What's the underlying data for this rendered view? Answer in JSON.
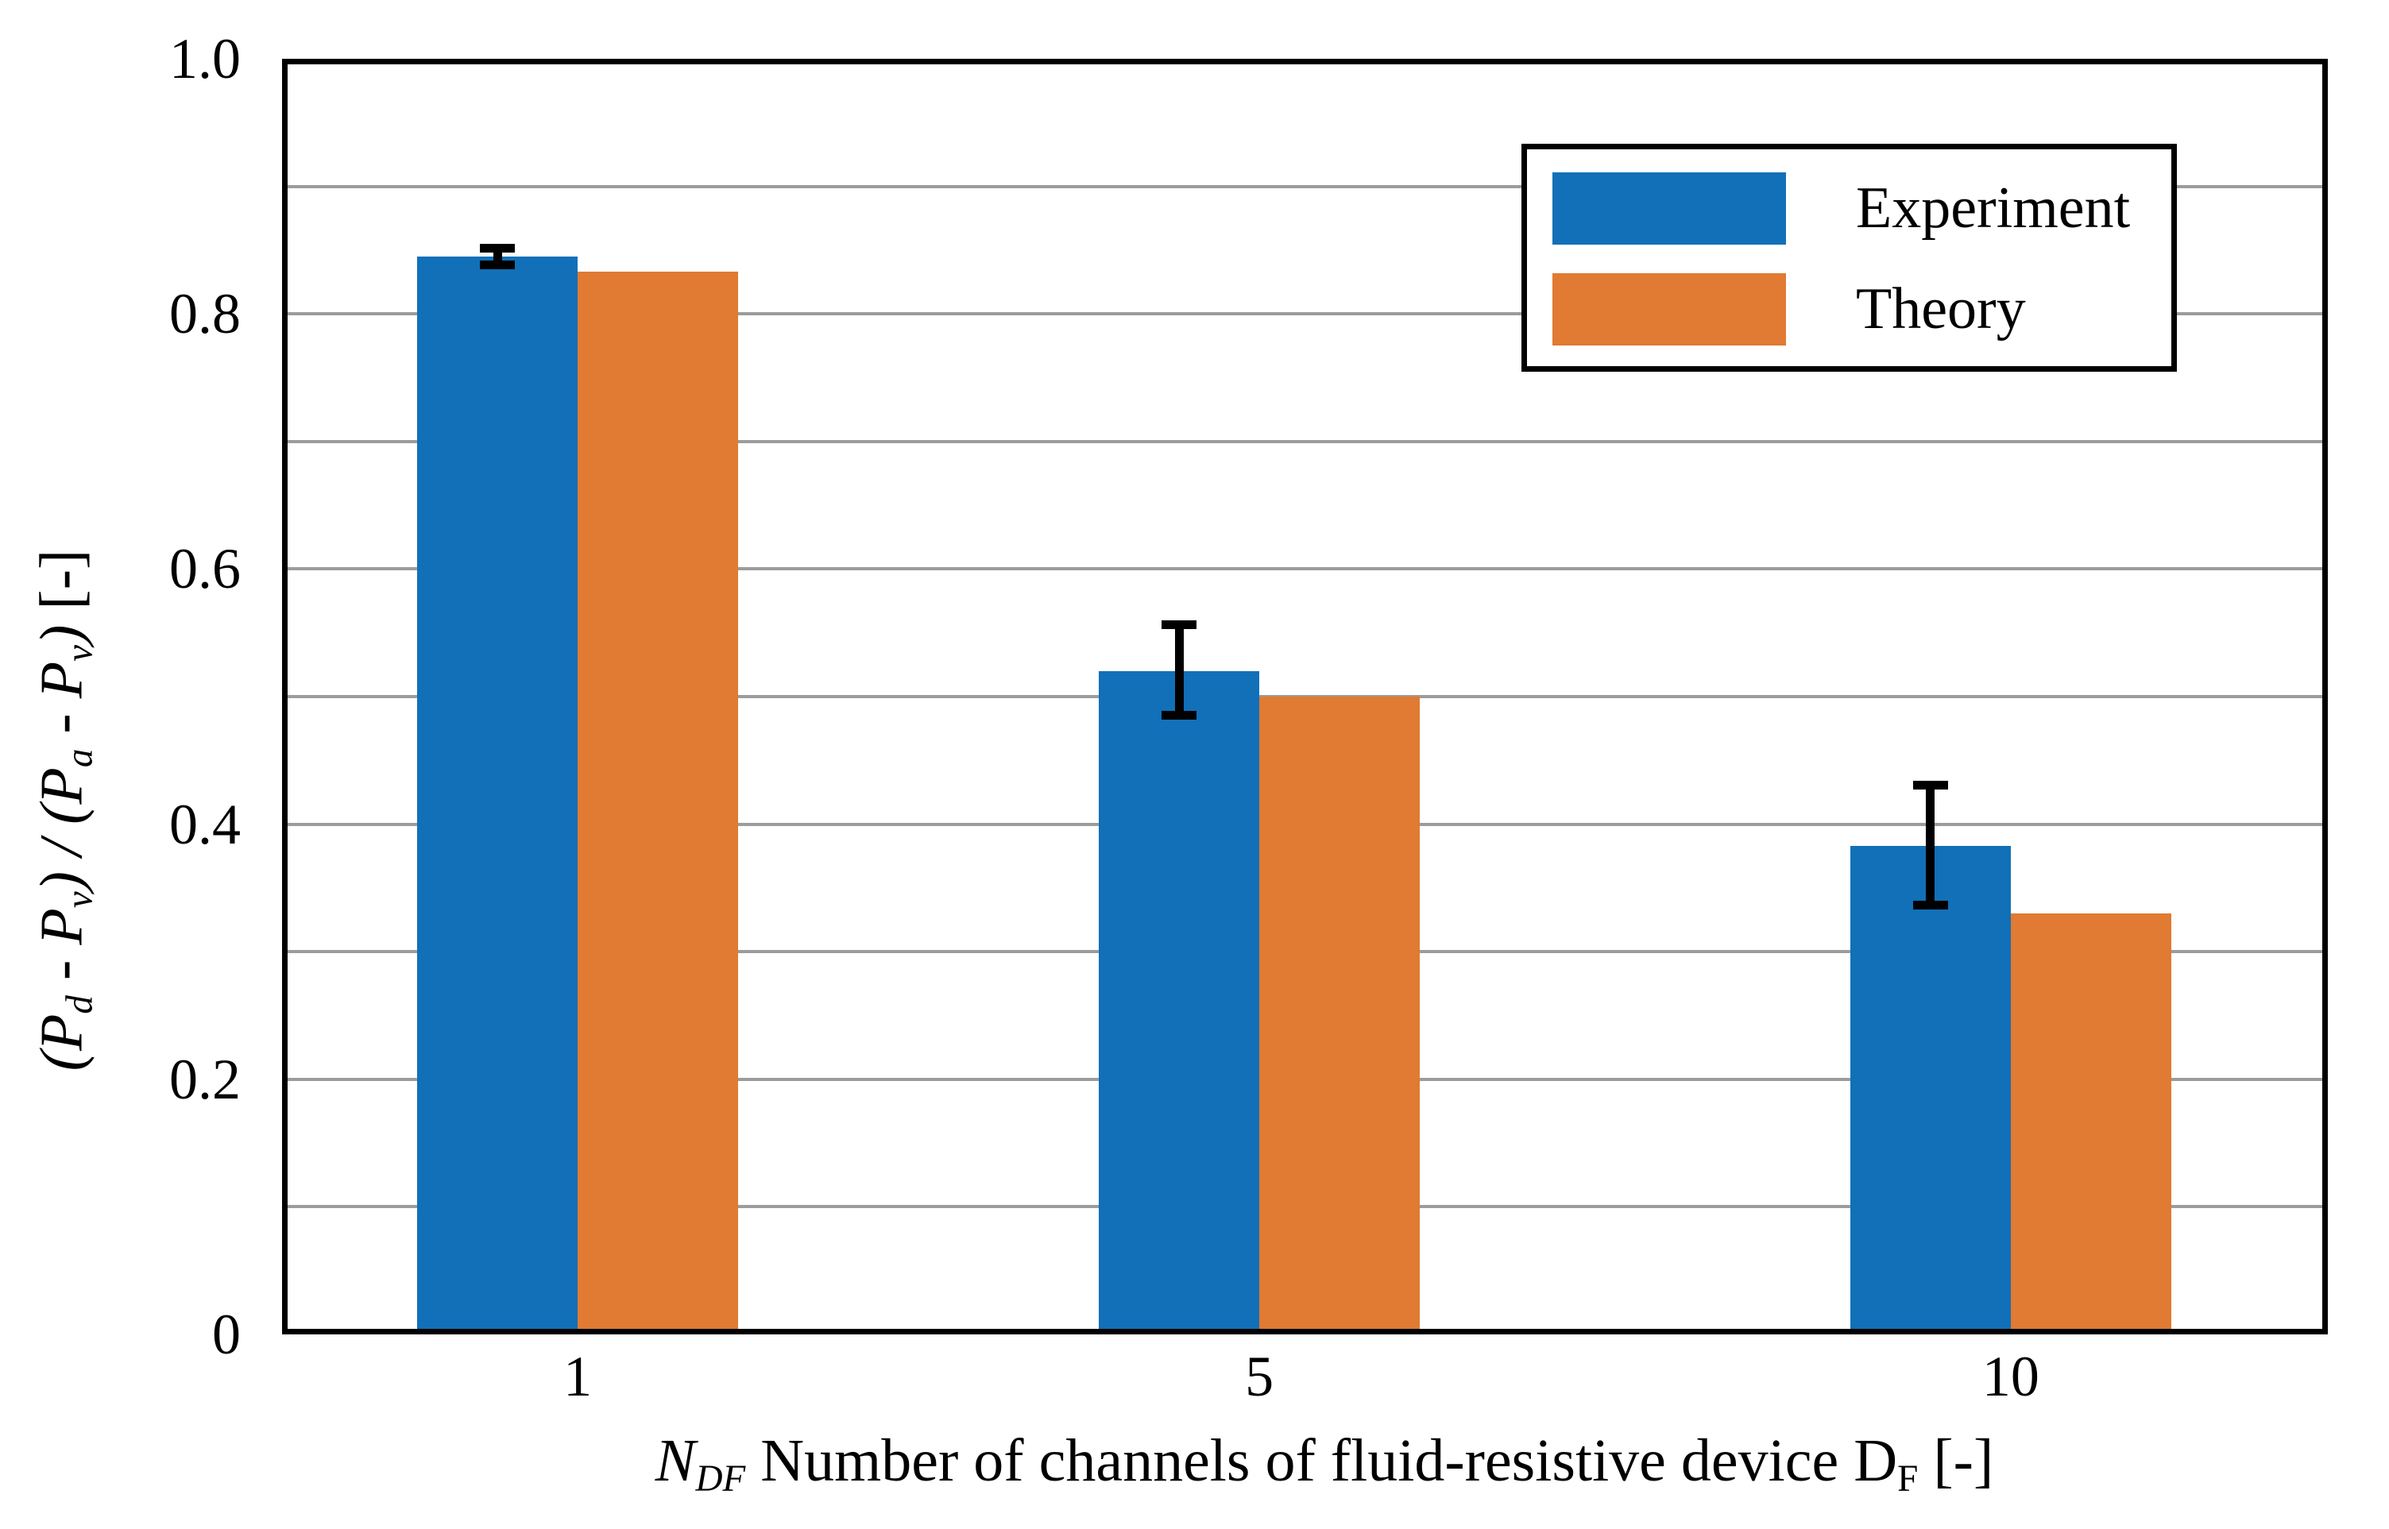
{
  "chart_data": {
    "type": "bar",
    "title": "",
    "categories": [
      "1",
      "5",
      "10"
    ],
    "series": [
      {
        "name": "Experiment",
        "color": "#1170b8",
        "values": [
          0.845,
          0.52,
          0.383
        ],
        "error_plus": [
          0.01,
          0.04,
          0.051
        ],
        "error_minus": [
          0.01,
          0.038,
          0.05
        ]
      },
      {
        "name": "Theory",
        "color": "#e17a33",
        "values": [
          0.833,
          0.5,
          0.33
        ]
      }
    ],
    "xlabel_plain": "NDF Number of channels of fluid-resistive device DF [-]",
    "ylabel_plain": "(Pd - Pv) / (Pa - Pv) [-]",
    "xlabel_rich": [
      {
        "t": "N",
        "i": 1
      },
      {
        "t": "DF",
        "s": 1,
        "i": 1
      },
      {
        "t": " Number of channels of fluid-resistive device ",
        "i": 0
      },
      {
        "t": "D",
        "i": 0
      },
      {
        "t": "F",
        "s": 1,
        "i": 0
      },
      {
        "t": " [-]",
        "i": 0
      }
    ],
    "ylabel_rich": [
      {
        "t": "(",
        "i": 1
      },
      {
        "t": "P",
        "i": 1
      },
      {
        "t": "d",
        "s": 1,
        "i": 1
      },
      {
        "t": " - ",
        "i": 1
      },
      {
        "t": "P",
        "i": 1
      },
      {
        "t": "v",
        "s": 1,
        "i": 1
      },
      {
        "t": ") / (",
        "i": 1
      },
      {
        "t": "P",
        "i": 1
      },
      {
        "t": "a",
        "s": 1,
        "i": 1
      },
      {
        "t": " - ",
        "i": 1
      },
      {
        "t": "P",
        "i": 1
      },
      {
        "t": "v",
        "s": 1,
        "i": 1
      },
      {
        "t": ")",
        "i": 1
      },
      {
        "t": " [-]",
        "i": 0
      }
    ],
    "ylim": [
      0,
      1.0
    ],
    "ytick_labels": [
      "1.0",
      "0.8",
      "0.6",
      "0.4",
      "0.2",
      "0"
    ],
    "ytick_values": [
      1.0,
      0.8,
      0.6,
      0.4,
      0.2,
      0
    ],
    "grid": {
      "axis": "y",
      "step": 0.1,
      "color": "#9c9c9c"
    },
    "legend": {
      "position": "top-right",
      "entries": [
        "Experiment",
        "Theory"
      ]
    },
    "errorbar_color": "#000000",
    "frame_color": "#000000",
    "background": "#ffffff",
    "group_centers_pct": [
      14.45,
      47.77,
      84.5
    ],
    "bar_width_pct": 7.84
  }
}
